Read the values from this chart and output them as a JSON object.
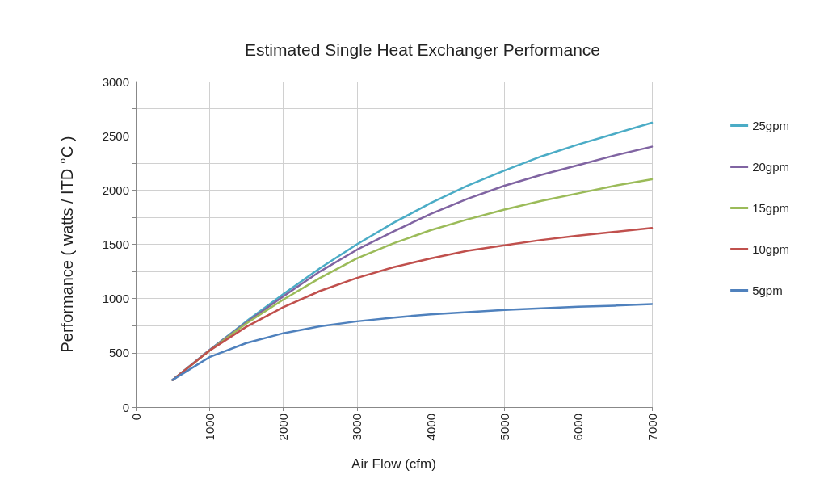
{
  "chart_data": {
    "type": "line",
    "title": "Estimated Single Heat Exchanger Performance",
    "xlabel": "Air Flow (cfm)",
    "ylabel": "Performance ( watts / ITD °C )",
    "x": [
      500,
      1000,
      1500,
      2000,
      2500,
      3000,
      3500,
      4000,
      4500,
      5000,
      5500,
      6000,
      6500,
      7000
    ],
    "series": [
      {
        "name": "25gpm",
        "color": "#4bacc6",
        "values": [
          250,
          525,
          790,
          1040,
          1280,
          1500,
          1700,
          1880,
          2040,
          2180,
          2310,
          2420,
          2520,
          2620
        ]
      },
      {
        "name": "20gpm",
        "color": "#8064a2",
        "values": [
          250,
          525,
          780,
          1020,
          1250,
          1450,
          1620,
          1780,
          1920,
          2040,
          2140,
          2230,
          2320,
          2400
        ]
      },
      {
        "name": "15gpm",
        "color": "#9bbb59",
        "values": [
          250,
          520,
          770,
          990,
          1190,
          1370,
          1510,
          1630,
          1730,
          1820,
          1900,
          1970,
          2040,
          2100
        ]
      },
      {
        "name": "10gpm",
        "color": "#c0504d",
        "values": [
          250,
          520,
          740,
          920,
          1070,
          1190,
          1290,
          1370,
          1440,
          1490,
          1540,
          1580,
          1615,
          1650
        ]
      },
      {
        "name": "5gpm",
        "color": "#4f81bd",
        "values": [
          250,
          460,
          590,
          680,
          745,
          790,
          825,
          855,
          875,
          895,
          910,
          925,
          935,
          950
        ]
      }
    ],
    "xlim": [
      0,
      7000
    ],
    "xticks": [
      0,
      1000,
      2000,
      3000,
      4000,
      5000,
      6000,
      7000
    ],
    "ylim": [
      0,
      3000
    ],
    "yticks": [
      0,
      {
        "value": 250,
        "label": null
      },
      500,
      {
        "value": 750,
        "label": null
      },
      1000,
      {
        "value": 1250,
        "label": null
      },
      1500,
      {
        "value": 1750,
        "label": null
      },
      2000,
      {
        "value": 2250,
        "label": null
      },
      2500,
      {
        "value": 2750,
        "label": null
      },
      3000
    ],
    "grid": true,
    "legend": "right",
    "marker": "none",
    "line_style": "solid"
  }
}
